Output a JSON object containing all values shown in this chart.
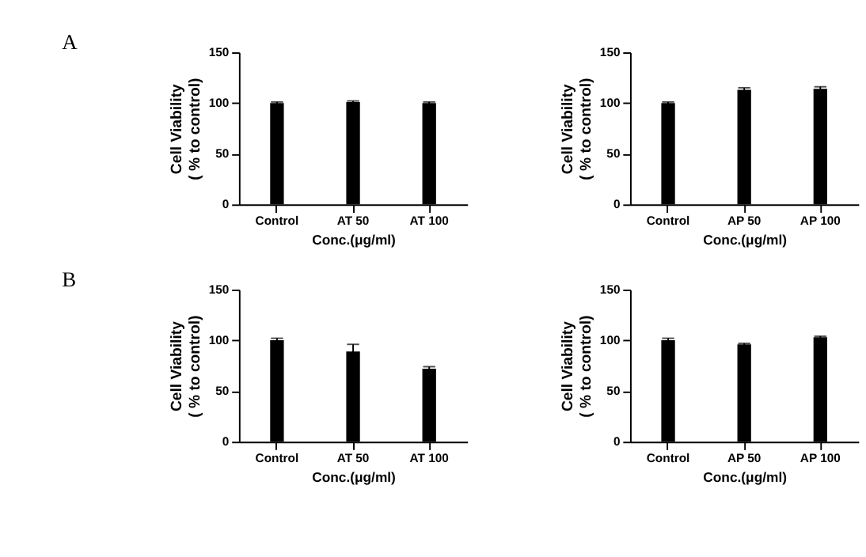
{
  "chart_data": [
    {
      "type": "bar",
      "title": "A",
      "categories": [
        "Control",
        "AT 50",
        "AT 100"
      ],
      "values": [
        100,
        101,
        100
      ],
      "errors": [
        1,
        1,
        1
      ],
      "color": "#000000",
      "xlabel": "Conc.(μg/ml)",
      "ylabel": "Cell Viability\n( % to control)",
      "ylim": [
        0,
        150
      ],
      "yticks": [
        0,
        50,
        100,
        150
      ],
      "grid": false
    },
    {
      "type": "bar",
      "categories": [
        "Control",
        "AP 50",
        "AP 100"
      ],
      "values": [
        100,
        113,
        114
      ],
      "errors": [
        1,
        2,
        2
      ],
      "color": "#000000",
      "xlabel": "Conc.(μg/ml)",
      "ylabel": "Cell Viability\n( % to control)",
      "ylim": [
        0,
        150
      ],
      "yticks": [
        0,
        50,
        100,
        150
      ],
      "grid": false
    },
    {
      "type": "bar",
      "title": "B",
      "categories": [
        "Control",
        "AT 50",
        "AT 100"
      ],
      "values": [
        100,
        89,
        72
      ],
      "errors": [
        2,
        7,
        2
      ],
      "color": "#000000",
      "xlabel": "Conc.(μg/ml)",
      "ylabel": "Cell Viability\n( % to control)",
      "ylim": [
        0,
        150
      ],
      "yticks": [
        0,
        50,
        100,
        150
      ],
      "grid": false
    },
    {
      "type": "bar",
      "categories": [
        "Control",
        "AP 50",
        "AP 100"
      ],
      "values": [
        100,
        96,
        103
      ],
      "errors": [
        2,
        1,
        1
      ],
      "color": "#000000",
      "xlabel": "Conc.(μg/ml)",
      "ylabel": "Cell Viability\n( % to control)",
      "ylim": [
        0,
        150
      ],
      "yticks": [
        0,
        50,
        100,
        150
      ],
      "grid": false
    }
  ]
}
